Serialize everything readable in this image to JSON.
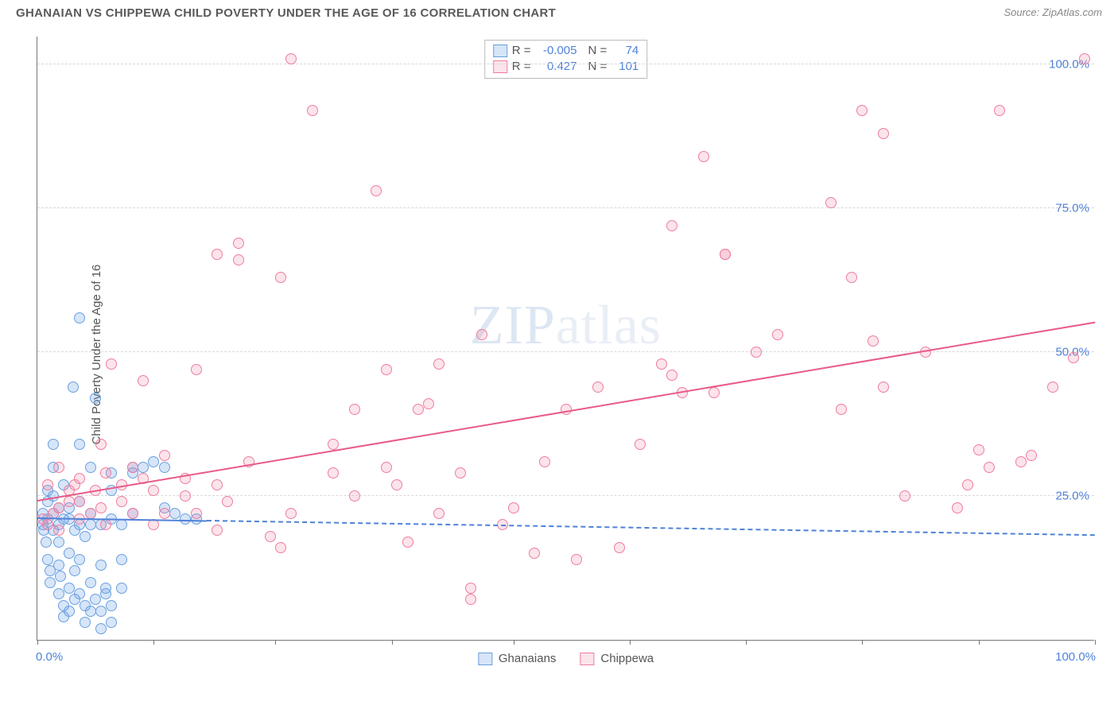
{
  "header": {
    "title": "GHANAIAN VS CHIPPEWA CHILD POVERTY UNDER THE AGE OF 16 CORRELATION CHART",
    "source": "Source: ZipAtlas.com"
  },
  "chart": {
    "type": "scatter",
    "ylabel": "Child Poverty Under the Age of 16",
    "watermark": "ZIPatlas",
    "background_color": "#ffffff",
    "grid_color": "#d8d8d8",
    "axis_color": "#777777",
    "label_color": "#4f82d8",
    "xlim": [
      0,
      100
    ],
    "ylim": [
      0,
      105
    ],
    "xtick_positions": [
      0,
      11,
      22.5,
      33.5,
      45,
      56,
      67,
      78,
      89,
      100
    ],
    "y_gridlines": [
      {
        "y": 25,
        "label": "25.0%"
      },
      {
        "y": 50,
        "label": "50.0%"
      },
      {
        "y": 75,
        "label": "75.0%"
      },
      {
        "y": 100,
        "label": "100.0%"
      }
    ],
    "xaxis_labels": {
      "min": "0.0%",
      "max": "100.0%"
    },
    "marker_radius": 7,
    "marker_border_width": 1.2,
    "series": [
      {
        "key": "ghanaians",
        "name": "Ghanaians",
        "fill_color": "rgba(110,160,230,0.28)",
        "stroke_color": "#6aa0e0",
        "stats": {
          "R": "-0.005",
          "N": "74"
        },
        "trend": {
          "x1": 0,
          "y1": 21,
          "x2": 100,
          "y2": 18,
          "solid_until_x": 16,
          "color": "#4f82d8",
          "width": 2.2
        },
        "points": [
          [
            0.5,
            20
          ],
          [
            0.5,
            22
          ],
          [
            0.6,
            19
          ],
          [
            0.8,
            17
          ],
          [
            1,
            21
          ],
          [
            1,
            24
          ],
          [
            1,
            26
          ],
          [
            1,
            14
          ],
          [
            1.2,
            12
          ],
          [
            1.2,
            10
          ],
          [
            1.5,
            22
          ],
          [
            1.5,
            19
          ],
          [
            1.5,
            25
          ],
          [
            1.5,
            30
          ],
          [
            1.5,
            34
          ],
          [
            2,
            20
          ],
          [
            2,
            23
          ],
          [
            2,
            17
          ],
          [
            2,
            13
          ],
          [
            2,
            8
          ],
          [
            2.2,
            11
          ],
          [
            2.5,
            21
          ],
          [
            2.5,
            27
          ],
          [
            2.5,
            6
          ],
          [
            2.5,
            4
          ],
          [
            3,
            21
          ],
          [
            3,
            23
          ],
          [
            3,
            15
          ],
          [
            3,
            9
          ],
          [
            3,
            5
          ],
          [
            3.4,
            44
          ],
          [
            3.5,
            19
          ],
          [
            3.5,
            12
          ],
          [
            3.5,
            7
          ],
          [
            4,
            20
          ],
          [
            4,
            24
          ],
          [
            4,
            34
          ],
          [
            4,
            14
          ],
          [
            4,
            8
          ],
          [
            4,
            56
          ],
          [
            4.5,
            18
          ],
          [
            4.5,
            6
          ],
          [
            4.5,
            3
          ],
          [
            5,
            20
          ],
          [
            5,
            22
          ],
          [
            5,
            10
          ],
          [
            5,
            5
          ],
          [
            5,
            30
          ],
          [
            5.5,
            42
          ],
          [
            5.5,
            7
          ],
          [
            6,
            20
          ],
          [
            6,
            13
          ],
          [
            6,
            5
          ],
          [
            6,
            2
          ],
          [
            6.5,
            8
          ],
          [
            6.5,
            9
          ],
          [
            7,
            21
          ],
          [
            7,
            26
          ],
          [
            7,
            29
          ],
          [
            7,
            6
          ],
          [
            7,
            3
          ],
          [
            8,
            20
          ],
          [
            8,
            14
          ],
          [
            8,
            9
          ],
          [
            9,
            30
          ],
          [
            9,
            29
          ],
          [
            9,
            22
          ],
          [
            10,
            30
          ],
          [
            11,
            31
          ],
          [
            12,
            30
          ],
          [
            12,
            23
          ],
          [
            13,
            22
          ],
          [
            14,
            21
          ],
          [
            15,
            21
          ]
        ]
      },
      {
        "key": "chippewa",
        "name": "Chippewa",
        "fill_color": "rgba(240,130,165,0.22)",
        "stroke_color": "#ee7d9f",
        "stats": {
          "R": "0.427",
          "N": "101"
        },
        "trend": {
          "x1": 0,
          "y1": 24,
          "x2": 100,
          "y2": 55,
          "solid_until_x": 100,
          "color": "#e85a88",
          "width": 2.4
        },
        "points": [
          [
            0.5,
            21
          ],
          [
            1,
            20
          ],
          [
            1,
            27
          ],
          [
            1.5,
            22
          ],
          [
            2,
            19
          ],
          [
            2,
            23
          ],
          [
            2,
            30
          ],
          [
            3,
            24
          ],
          [
            3,
            26
          ],
          [
            3.5,
            27
          ],
          [
            4,
            21
          ],
          [
            4,
            24
          ],
          [
            4,
            28
          ],
          [
            5,
            22
          ],
          [
            5.5,
            26
          ],
          [
            6,
            23
          ],
          [
            6,
            34
          ],
          [
            6.5,
            20
          ],
          [
            6.5,
            29
          ],
          [
            7,
            48
          ],
          [
            8,
            24
          ],
          [
            8,
            27
          ],
          [
            9,
            22
          ],
          [
            9,
            30
          ],
          [
            10,
            28
          ],
          [
            10,
            45
          ],
          [
            11,
            20
          ],
          [
            11,
            26
          ],
          [
            12,
            22
          ],
          [
            12,
            32
          ],
          [
            14,
            25
          ],
          [
            14,
            28
          ],
          [
            15,
            47
          ],
          [
            15,
            22
          ],
          [
            17,
            19
          ],
          [
            17,
            27
          ],
          [
            17,
            67
          ],
          [
            18,
            24
          ],
          [
            19,
            66
          ],
          [
            19,
            69
          ],
          [
            20,
            31
          ],
          [
            22,
            18
          ],
          [
            23,
            16
          ],
          [
            23,
            63
          ],
          [
            24,
            22
          ],
          [
            24,
            101
          ],
          [
            26,
            92
          ],
          [
            28,
            29
          ],
          [
            28,
            34
          ],
          [
            30,
            25
          ],
          [
            30,
            40
          ],
          [
            32,
            78
          ],
          [
            33,
            30
          ],
          [
            33,
            47
          ],
          [
            34,
            27
          ],
          [
            35,
            17
          ],
          [
            36,
            40
          ],
          [
            37,
            41
          ],
          [
            38,
            22
          ],
          [
            38,
            48
          ],
          [
            40,
            29
          ],
          [
            41,
            7
          ],
          [
            41,
            9
          ],
          [
            42,
            53
          ],
          [
            44,
            20
          ],
          [
            45,
            23
          ],
          [
            47,
            15
          ],
          [
            48,
            31
          ],
          [
            50,
            40
          ],
          [
            51,
            14
          ],
          [
            53,
            44
          ],
          [
            55,
            16
          ],
          [
            57,
            34
          ],
          [
            59,
            48
          ],
          [
            60,
            46
          ],
          [
            60,
            72
          ],
          [
            61,
            43
          ],
          [
            63,
            84
          ],
          [
            64,
            43
          ],
          [
            65,
            67
          ],
          [
            65,
            67
          ],
          [
            68,
            50
          ],
          [
            70,
            53
          ],
          [
            75,
            76
          ],
          [
            76,
            40
          ],
          [
            77,
            63
          ],
          [
            78,
            92
          ],
          [
            79,
            52
          ],
          [
            80,
            44
          ],
          [
            80,
            88
          ],
          [
            82,
            25
          ],
          [
            84,
            50
          ],
          [
            87,
            23
          ],
          [
            88,
            27
          ],
          [
            89,
            33
          ],
          [
            90,
            30
          ],
          [
            91,
            92
          ],
          [
            93,
            31
          ],
          [
            94,
            32
          ],
          [
            96,
            44
          ],
          [
            98,
            49
          ],
          [
            99,
            101
          ]
        ]
      }
    ],
    "legend_top": {
      "rows": [
        {
          "swatch": 0,
          "R_label": "R =",
          "R_value": "-0.005",
          "N_label": "N =",
          "N_value": "74"
        },
        {
          "swatch": 1,
          "R_label": "R =",
          "R_value": "0.427",
          "N_label": "N =",
          "N_value": "101"
        }
      ]
    }
  }
}
